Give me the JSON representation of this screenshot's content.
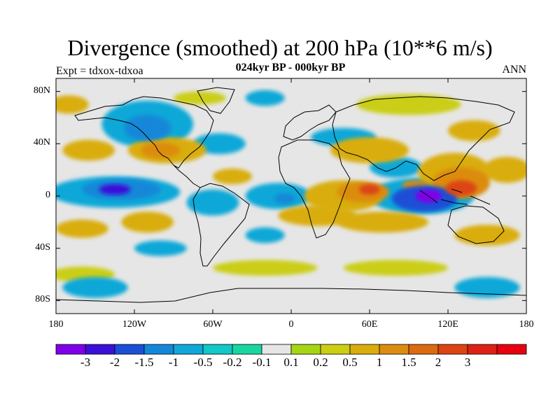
{
  "title": "Divergence (smoothed) at 200 hPa (10**6 m/s)",
  "subtitle": "024kyr BP - 000kyr BP",
  "left_label": "Expt = tdxox-tdxoa",
  "right_label": "ANN",
  "map": {
    "lon_range": [
      -180,
      180
    ],
    "lat_range": [
      -90,
      90
    ],
    "y_ticks": [
      {
        "value": 80,
        "label": "80N"
      },
      {
        "value": 40,
        "label": "40N"
      },
      {
        "value": 0,
        "label": "0"
      },
      {
        "value": -40,
        "label": "40S"
      },
      {
        "value": -80,
        "label": "80S"
      }
    ],
    "x_ticks": [
      {
        "value": -180,
        "label": "180"
      },
      {
        "value": -120,
        "label": "120W"
      },
      {
        "value": -60,
        "label": "60W"
      },
      {
        "value": 0,
        "label": "0"
      },
      {
        "value": 60,
        "label": "60E"
      },
      {
        "value": 120,
        "label": "120E"
      },
      {
        "value": 180,
        "label": "180"
      }
    ]
  },
  "colorbar": {
    "colors": [
      "#7f00e8",
      "#3b10d8",
      "#1a4fd6",
      "#1487d8",
      "#10a8d8",
      "#12c8c8",
      "#19d6a0",
      "#e6e6e6",
      "#a5d615",
      "#cbce12",
      "#d9ad0e",
      "#dc8c10",
      "#dc6a10",
      "#dc4413",
      "#dc2216",
      "#e60010"
    ],
    "labels": [
      "-3",
      "-2",
      "-1.5",
      "-1",
      "-0.5",
      "-0.2",
      "-0.1",
      "0.1",
      "0.2",
      "0.5",
      "1",
      "1.5",
      "2",
      "3"
    ]
  },
  "field_blobs": [
    {
      "lon": 105,
      "lat": 0,
      "rlon": 10,
      "rlat": 5,
      "level": -3
    },
    {
      "lon": 102,
      "lat": -2,
      "rlon": 25,
      "rlat": 10,
      "level": -1.5
    },
    {
      "lon": 100,
      "lat": 0,
      "rlon": 40,
      "rlat": 14,
      "level": -0.5
    },
    {
      "lon": -135,
      "lat": 5,
      "rlon": 12,
      "rlat": 4,
      "level": -2
    },
    {
      "lon": -130,
      "lat": 5,
      "rlon": 30,
      "rlat": 8,
      "level": -1
    },
    {
      "lon": -135,
      "lat": 3,
      "rlon": 50,
      "rlat": 12,
      "level": -0.5
    },
    {
      "lon": -110,
      "lat": 52,
      "rlon": 18,
      "rlat": 10,
      "level": -1
    },
    {
      "lon": -110,
      "lat": 55,
      "rlon": 35,
      "rlat": 18,
      "level": -0.5
    },
    {
      "lon": -5,
      "lat": -2,
      "rlon": 8,
      "rlat": 4,
      "level": -1
    },
    {
      "lon": -10,
      "lat": 0,
      "rlon": 25,
      "rlat": 10,
      "level": -0.5
    },
    {
      "lon": -60,
      "lat": -5,
      "rlon": 20,
      "rlat": 10,
      "level": -0.5
    },
    {
      "lon": -55,
      "lat": 40,
      "rlon": 20,
      "rlat": 8,
      "level": -0.5
    },
    {
      "lon": 40,
      "lat": 45,
      "rlon": 25,
      "rlat": 7,
      "level": -0.5
    },
    {
      "lon": 80,
      "lat": 22,
      "rlon": 20,
      "rlat": 8,
      "level": -0.5
    },
    {
      "lon": -100,
      "lat": -40,
      "rlon": 20,
      "rlat": 6,
      "level": -0.5
    },
    {
      "lon": -20,
      "lat": -30,
      "rlon": 15,
      "rlat": 6,
      "level": -0.5
    },
    {
      "lon": 150,
      "lat": -70,
      "rlon": 25,
      "rlat": 8,
      "level": -0.5
    },
    {
      "lon": -150,
      "lat": -70,
      "rlon": 25,
      "rlat": 8,
      "level": -0.5
    },
    {
      "lon": -20,
      "lat": 75,
      "rlon": 15,
      "rlat": 6,
      "level": -0.5
    },
    {
      "lon": 60,
      "lat": 5,
      "rlon": 8,
      "rlat": 4,
      "level": 2
    },
    {
      "lon": 55,
      "lat": 3,
      "rlon": 20,
      "rlat": 8,
      "level": 1
    },
    {
      "lon": 40,
      "lat": 0,
      "rlon": 30,
      "rlat": 12,
      "level": 0.5
    },
    {
      "lon": 95,
      "lat": 8,
      "rlon": 10,
      "rlat": 4,
      "level": 1
    },
    {
      "lon": 130,
      "lat": 6,
      "rlon": 12,
      "rlat": 6,
      "level": 2
    },
    {
      "lon": 130,
      "lat": 10,
      "rlon": 22,
      "rlat": 12,
      "level": 1
    },
    {
      "lon": 125,
      "lat": 18,
      "rlon": 28,
      "rlat": 15,
      "level": 0.5
    },
    {
      "lon": -100,
      "lat": 35,
      "rlon": 15,
      "rlat": 6,
      "level": 1
    },
    {
      "lon": -95,
      "lat": 35,
      "rlon": 30,
      "rlat": 10,
      "level": 0.5
    },
    {
      "lon": -45,
      "lat": 15,
      "rlon": 15,
      "rlat": 6,
      "level": 0.5
    },
    {
      "lon": 60,
      "lat": 35,
      "rlon": 30,
      "rlat": 10,
      "level": 0.5
    },
    {
      "lon": -155,
      "lat": 35,
      "rlon": 20,
      "rlat": 8,
      "level": 0.5
    },
    {
      "lon": 165,
      "lat": 20,
      "rlon": 18,
      "rlat": 10,
      "level": 0.5
    },
    {
      "lon": -160,
      "lat": -25,
      "rlon": 20,
      "rlat": 7,
      "level": 0.5
    },
    {
      "lon": -110,
      "lat": -20,
      "rlon": 20,
      "rlat": 8,
      "level": 0.5
    },
    {
      "lon": 20,
      "lat": -15,
      "rlon": 30,
      "rlat": 8,
      "level": 0.5
    },
    {
      "lon": 70,
      "lat": -20,
      "rlon": 35,
      "rlat": 8,
      "level": 0.5
    },
    {
      "lon": 150,
      "lat": -30,
      "rlon": 25,
      "rlat": 8,
      "level": 0.5
    },
    {
      "lon": 140,
      "lat": 50,
      "rlon": 20,
      "rlat": 8,
      "level": 0.5
    },
    {
      "lon": -170,
      "lat": 70,
      "rlon": 15,
      "rlat": 7,
      "level": 0.5
    },
    {
      "lon": -20,
      "lat": -55,
      "rlon": 40,
      "rlat": 6,
      "level": 0.2
    },
    {
      "lon": 80,
      "lat": -55,
      "rlon": 40,
      "rlat": 6,
      "level": 0.2
    },
    {
      "lon": -160,
      "lat": -60,
      "rlon": 25,
      "rlat": 6,
      "level": 0.2
    },
    {
      "lon": 90,
      "lat": 70,
      "rlon": 40,
      "rlat": 8,
      "level": 0.2
    },
    {
      "lon": -70,
      "lat": 75,
      "rlon": 20,
      "rlat": 5,
      "level": 0.2
    }
  ]
}
